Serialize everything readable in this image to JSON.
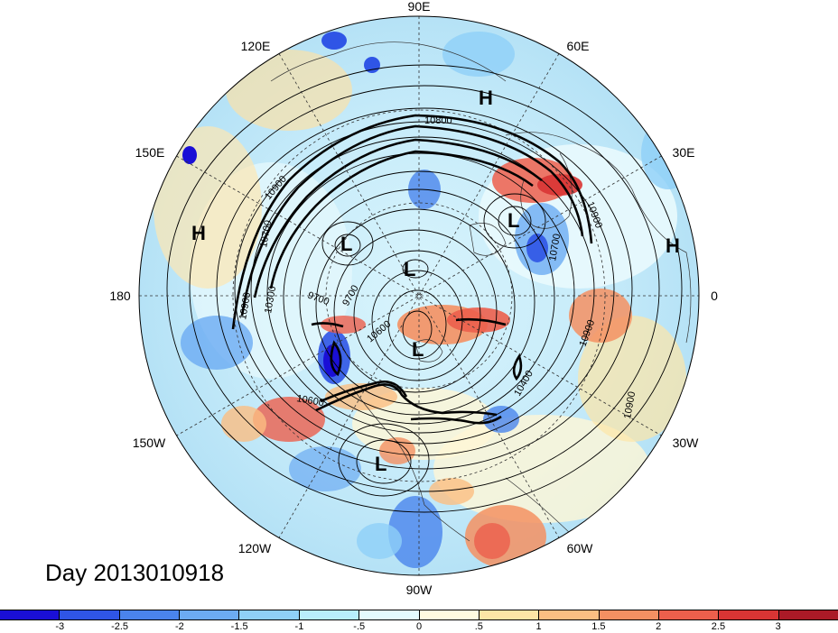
{
  "map": {
    "longitude_labels": [
      "90E",
      "60E",
      "30E",
      "0",
      "30W",
      "60W",
      "90W",
      "120W",
      "150W",
      "180",
      "150E",
      "120E"
    ],
    "pressure_centers": [
      "H",
      "H",
      "H",
      "L",
      "L",
      "L",
      "L",
      "L"
    ],
    "contour_labels": [
      "10800",
      "10900",
      "10900",
      "10700",
      "10700",
      "9700",
      "9700",
      "10300",
      "10900",
      "10900",
      "10400",
      "10900",
      "10600",
      "10600"
    ],
    "date_text": "Day 2013010918"
  },
  "colorbar": {
    "colors": [
      "#1a0fd6",
      "#2f55e6",
      "#4a84ec",
      "#6cabf2",
      "#8fd0f7",
      "#b8eefc",
      "#e4fbfe",
      "#fffbe0",
      "#fde5a6",
      "#fbbe82",
      "#f49062",
      "#ec5f4c",
      "#d93534",
      "#ab1a27"
    ],
    "tick_labels": [
      "-3",
      "-2.5",
      "-2",
      "-1.5",
      "-1",
      "-.5",
      "0",
      ".5",
      "1",
      "1.5",
      "2",
      "2.5",
      "3"
    ]
  }
}
